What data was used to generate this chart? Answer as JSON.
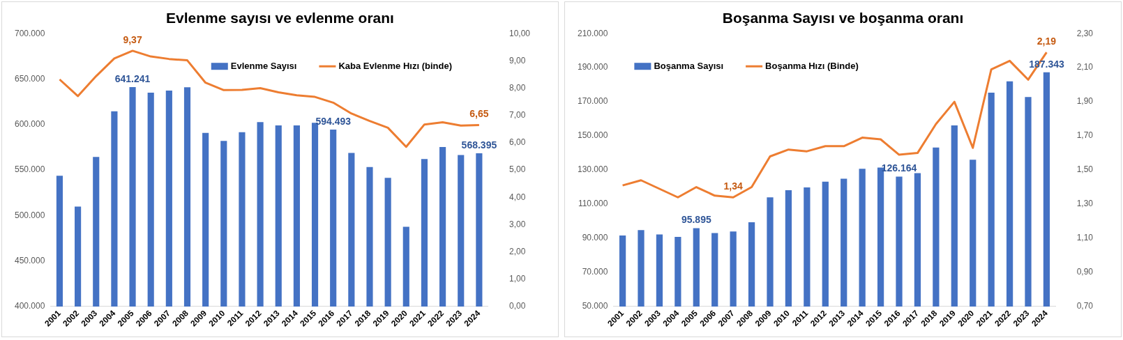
{
  "chart_data": [
    {
      "type": "bar",
      "title": "Evlenme sayısı ve evlenme oranı",
      "categories": [
        "2001",
        "2002",
        "2003",
        "2004",
        "2005",
        "2006",
        "2007",
        "2008",
        "2009",
        "2010",
        "2011",
        "2012",
        "2013",
        "2014",
        "2015",
        "2016",
        "2017",
        "2018",
        "2019",
        "2020",
        "2021",
        "2022",
        "2023",
        "2024"
      ],
      "series": [
        {
          "name": "Evlenme Sayısı",
          "type": "bar",
          "color": "#4472c4",
          "values": [
            543700,
            509800,
            564400,
            614500,
            641241,
            635100,
            637300,
            641000,
            590900,
            582100,
            591600,
            602700,
            599000,
            599000,
            602000,
            594493,
            568800,
            553300,
            541500,
            487700,
            562200,
            575400,
            566600,
            568395
          ],
          "value_labels": [
            null,
            null,
            null,
            null,
            "641.241",
            null,
            null,
            null,
            null,
            null,
            null,
            null,
            null,
            null,
            null,
            "594.493",
            null,
            null,
            null,
            null,
            null,
            null,
            null,
            "568.395"
          ]
        },
        {
          "name": "Kaba Evlenme Hızı (binde)",
          "type": "line",
          "axis": "y2",
          "color": "#ed7d31",
          "values": [
            8.32,
            7.71,
            8.44,
            9.09,
            9.37,
            9.16,
            9.07,
            9.02,
            8.2,
            7.93,
            7.94,
            8.0,
            7.85,
            7.74,
            7.68,
            7.47,
            7.07,
            6.8,
            6.55,
            5.85,
            6.67,
            6.75,
            6.63,
            6.65
          ],
          "value_labels": [
            null,
            null,
            null,
            null,
            "9,37",
            null,
            null,
            null,
            null,
            null,
            null,
            null,
            null,
            null,
            null,
            null,
            null,
            null,
            null,
            null,
            null,
            null,
            null,
            "6,65"
          ]
        }
      ],
      "ylim": [
        400000,
        700000
      ],
      "yticks": [
        {
          "value": 400000,
          "label": "400.000"
        },
        {
          "value": 450000,
          "label": "450.000"
        },
        {
          "value": 500000,
          "label": "500.000"
        },
        {
          "value": 550000,
          "label": "550.000"
        },
        {
          "value": 600000,
          "label": "600.000"
        },
        {
          "value": 650000,
          "label": "650.000"
        },
        {
          "value": 700000,
          "label": "700.000"
        }
      ],
      "y2lim": [
        0,
        10
      ],
      "y2ticks": [
        {
          "value": 0,
          "label": "0,00"
        },
        {
          "value": 1,
          "label": "1,00"
        },
        {
          "value": 2,
          "label": "2,00"
        },
        {
          "value": 3,
          "label": "3,00"
        },
        {
          "value": 4,
          "label": "4,00"
        },
        {
          "value": 5,
          "label": "5,00"
        },
        {
          "value": 6,
          "label": "6,00"
        },
        {
          "value": 7,
          "label": "7,00"
        },
        {
          "value": 8,
          "label": "8,00"
        },
        {
          "value": 9,
          "label": "9,00"
        },
        {
          "value": 10,
          "label": "10,00"
        }
      ],
      "legend": "top right",
      "grid": false,
      "marker": "none"
    },
    {
      "type": "bar",
      "title": "Boşanma Sayısı ve boşanma oranı",
      "categories": [
        "2001",
        "2002",
        "2003",
        "2004",
        "2005",
        "2006",
        "2007",
        "2008",
        "2009",
        "2010",
        "2011",
        "2012",
        "2013",
        "2014",
        "2015",
        "2016",
        "2017",
        "2018",
        "2019",
        "2020",
        "2021",
        "2022",
        "2023",
        "2024"
      ],
      "series": [
        {
          "name": "Boşanma Sayısı",
          "type": "bar",
          "color": "#4472c4",
          "values": [
            91600,
            94800,
            92300,
            90800,
            95895,
            93100,
            94000,
            99400,
            114000,
            118200,
            119800,
            123200,
            124900,
            130700,
            131500,
            126164,
            128200,
            143200,
            156200,
            136100,
            175400,
            182000,
            172800,
            187343
          ],
          "value_labels": [
            null,
            null,
            null,
            null,
            "95.895",
            null,
            null,
            null,
            null,
            null,
            null,
            null,
            null,
            null,
            null,
            "126.164",
            null,
            null,
            null,
            null,
            null,
            null,
            null,
            "187.343"
          ]
        },
        {
          "name": "Boşanma Hızı (Binde)",
          "type": "line",
          "axis": "y2",
          "color": "#ed7d31",
          "values": [
            1.41,
            1.44,
            1.39,
            1.34,
            1.4,
            1.35,
            1.34,
            1.4,
            1.58,
            1.62,
            1.61,
            1.64,
            1.64,
            1.69,
            1.68,
            1.59,
            1.6,
            1.77,
            1.9,
            1.63,
            2.09,
            2.14,
            2.03,
            2.19
          ],
          "value_labels": [
            null,
            null,
            null,
            null,
            null,
            null,
            "1,34",
            null,
            null,
            null,
            null,
            null,
            null,
            null,
            null,
            null,
            null,
            null,
            null,
            null,
            null,
            null,
            null,
            "2,19"
          ]
        }
      ],
      "ylim": [
        50000,
        210000
      ],
      "yticks": [
        {
          "value": 50000,
          "label": "50.000"
        },
        {
          "value": 70000,
          "label": "70.000"
        },
        {
          "value": 90000,
          "label": "90.000"
        },
        {
          "value": 110000,
          "label": "110.000"
        },
        {
          "value": 130000,
          "label": "130.000"
        },
        {
          "value": 150000,
          "label": "150.000"
        },
        {
          "value": 170000,
          "label": "170.000"
        },
        {
          "value": 190000,
          "label": "190.000"
        },
        {
          "value": 210000,
          "label": "210.000"
        }
      ],
      "y2lim": [
        0.7,
        2.3
      ],
      "y2ticks": [
        {
          "value": 0.7,
          "label": "0,70"
        },
        {
          "value": 0.9,
          "label": "0,90"
        },
        {
          "value": 1.1,
          "label": "1,10"
        },
        {
          "value": 1.3,
          "label": "1,30"
        },
        {
          "value": 1.5,
          "label": "1,50"
        },
        {
          "value": 1.7,
          "label": "1,70"
        },
        {
          "value": 1.9,
          "label": "1,90"
        },
        {
          "value": 2.1,
          "label": "2,10"
        },
        {
          "value": 2.3,
          "label": "2,30"
        }
      ],
      "legend": "top left",
      "grid": false,
      "marker": "none"
    }
  ]
}
